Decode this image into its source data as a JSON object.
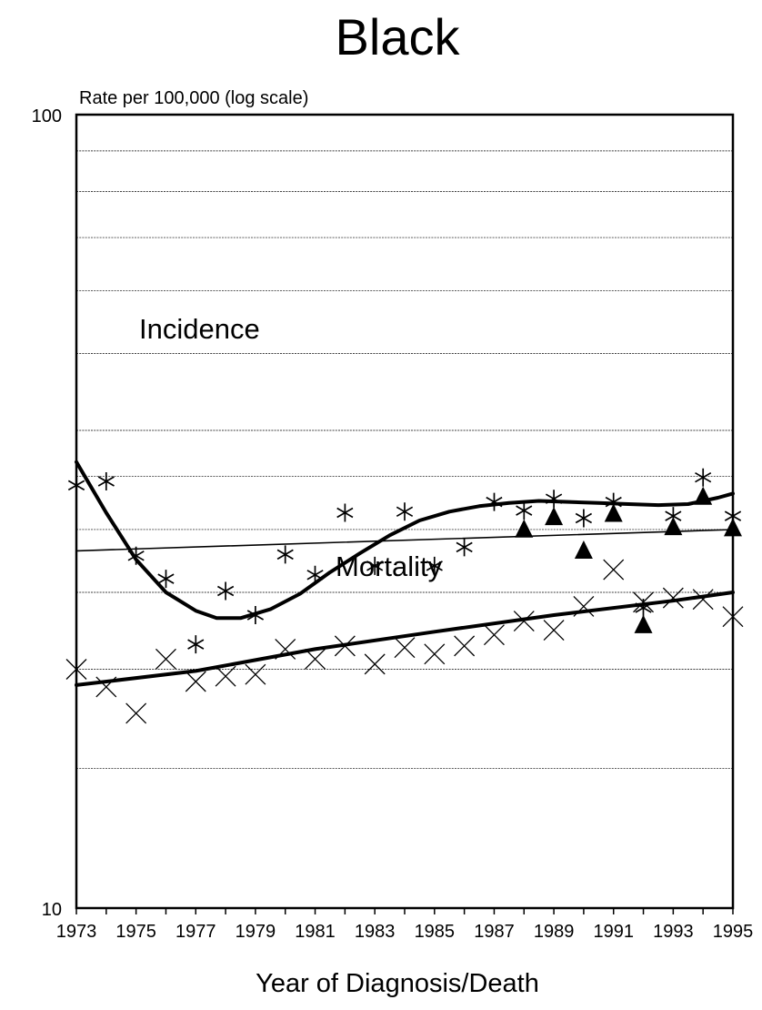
{
  "chart_data": {
    "type": "scatter",
    "title": "Black",
    "ylabel": "Rate per 100,000 (log scale)",
    "xlabel": "Year of Diagnosis/Death",
    "x_scale": "linear",
    "y_scale": "log",
    "xlim": [
      1973,
      1995
    ],
    "ylim": [
      10,
      100
    ],
    "grid": true,
    "x_tick_labels": [
      "1973",
      "1975",
      "1977",
      "1979",
      "1981",
      "1983",
      "1985",
      "1987",
      "1989",
      "1991",
      "1993",
      "1995"
    ],
    "y_tick_labels": [
      "100",
      "10"
    ],
    "y_gridlines": [
      15,
      20,
      25,
      30,
      35,
      40,
      50,
      60,
      70,
      80,
      90
    ],
    "annotations": [
      {
        "text": "Incidence",
        "x": 1977.5,
        "y": 34.5
      },
      {
        "text": "Mortality",
        "x": 1981.8,
        "y": 21.8
      }
    ],
    "series": [
      {
        "marker": "asterisk",
        "style": "points",
        "points": [
          {
            "x": 1973,
            "y": 34.1
          },
          {
            "x": 1974,
            "y": 34.5
          },
          {
            "x": 1975,
            "y": 27.8
          },
          {
            "x": 1976,
            "y": 26.0
          },
          {
            "x": 1977,
            "y": 21.5
          },
          {
            "x": 1978,
            "y": 25.1
          },
          {
            "x": 1979,
            "y": 23.4
          },
          {
            "x": 1980,
            "y": 27.9
          },
          {
            "x": 1981,
            "y": 26.3
          },
          {
            "x": 1982,
            "y": 31.5
          },
          {
            "x": 1983,
            "y": 27.0
          },
          {
            "x": 1984,
            "y": 31.6
          },
          {
            "x": 1985,
            "y": 27.0
          },
          {
            "x": 1986,
            "y": 28.5
          },
          {
            "x": 1987,
            "y": 32.5
          },
          {
            "x": 1988,
            "y": 31.7
          },
          {
            "x": 1989,
            "y": 32.8
          },
          {
            "x": 1990,
            "y": 31.0
          },
          {
            "x": 1991,
            "y": 32.5
          },
          {
            "x": 1992,
            "y": 23.9
          },
          {
            "x": 1993,
            "y": 31.2
          },
          {
            "x": 1994,
            "y": 34.9
          },
          {
            "x": 1995,
            "y": 31.2
          }
        ]
      },
      {
        "marker": "triangle",
        "style": "points",
        "points": [
          {
            "x": 1988,
            "y": 30.1
          },
          {
            "x": 1989,
            "y": 31.2
          },
          {
            "x": 1990,
            "y": 28.3
          },
          {
            "x": 1991,
            "y": 31.5
          },
          {
            "x": 1992,
            "y": 22.8
          },
          {
            "x": 1993,
            "y": 30.3
          },
          {
            "x": 1994,
            "y": 33.1
          },
          {
            "x": 1995,
            "y": 30.2
          }
        ]
      },
      {
        "marker": "x",
        "style": "points",
        "points": [
          {
            "x": 1973,
            "y": 20.0
          },
          {
            "x": 1974,
            "y": 19.0
          },
          {
            "x": 1975,
            "y": 17.6
          },
          {
            "x": 1976,
            "y": 20.6
          },
          {
            "x": 1977,
            "y": 19.3
          },
          {
            "x": 1978,
            "y": 19.6
          },
          {
            "x": 1979,
            "y": 19.7
          },
          {
            "x": 1980,
            "y": 21.2
          },
          {
            "x": 1981,
            "y": 20.6
          },
          {
            "x": 1982,
            "y": 21.4
          },
          {
            "x": 1983,
            "y": 20.3
          },
          {
            "x": 1984,
            "y": 21.3
          },
          {
            "x": 1985,
            "y": 20.9
          },
          {
            "x": 1986,
            "y": 21.4
          },
          {
            "x": 1987,
            "y": 22.1
          },
          {
            "x": 1988,
            "y": 23.0
          },
          {
            "x": 1989,
            "y": 22.4
          },
          {
            "x": 1990,
            "y": 24.0
          },
          {
            "x": 1991,
            "y": 26.7
          },
          {
            "x": 1992,
            "y": 24.3
          },
          {
            "x": 1993,
            "y": 24.6
          },
          {
            "x": 1994,
            "y": 24.5
          },
          {
            "x": 1995,
            "y": 23.3
          }
        ]
      },
      {
        "style": "line",
        "weight": "bold",
        "points": [
          {
            "x": 1973,
            "y": 36.5
          },
          {
            "x": 1974,
            "y": 31.5
          },
          {
            "x": 1975,
            "y": 27.5
          },
          {
            "x": 1976,
            "y": 25.0
          },
          {
            "x": 1977,
            "y": 23.7
          },
          {
            "x": 1977.7,
            "y": 23.2
          },
          {
            "x": 1978.5,
            "y": 23.2
          },
          {
            "x": 1979.5,
            "y": 23.8
          },
          {
            "x": 1980.5,
            "y": 24.9
          },
          {
            "x": 1981.5,
            "y": 26.5
          },
          {
            "x": 1982.5,
            "y": 28.0
          },
          {
            "x": 1983.5,
            "y": 29.5
          },
          {
            "x": 1984.5,
            "y": 30.8
          },
          {
            "x": 1985.5,
            "y": 31.6
          },
          {
            "x": 1986.5,
            "y": 32.1
          },
          {
            "x": 1987.5,
            "y": 32.4
          },
          {
            "x": 1988.5,
            "y": 32.6
          },
          {
            "x": 1989.5,
            "y": 32.5
          },
          {
            "x": 1990.5,
            "y": 32.4
          },
          {
            "x": 1991.5,
            "y": 32.3
          },
          {
            "x": 1992.5,
            "y": 32.2
          },
          {
            "x": 1993.5,
            "y": 32.3
          },
          {
            "x": 1994.5,
            "y": 32.9
          },
          {
            "x": 1995,
            "y": 33.3
          }
        ]
      },
      {
        "style": "line",
        "weight": "thin",
        "points": [
          {
            "x": 1973,
            "y": 28.2
          },
          {
            "x": 1995,
            "y": 30.0
          }
        ]
      },
      {
        "style": "line",
        "weight": "bold",
        "points": [
          {
            "x": 1973,
            "y": 19.1
          },
          {
            "x": 1977,
            "y": 19.9
          },
          {
            "x": 1981,
            "y": 21.2
          },
          {
            "x": 1985,
            "y": 22.3
          },
          {
            "x": 1989,
            "y": 23.4
          },
          {
            "x": 1993,
            "y": 24.4
          },
          {
            "x": 1995,
            "y": 25.0
          }
        ]
      }
    ]
  }
}
